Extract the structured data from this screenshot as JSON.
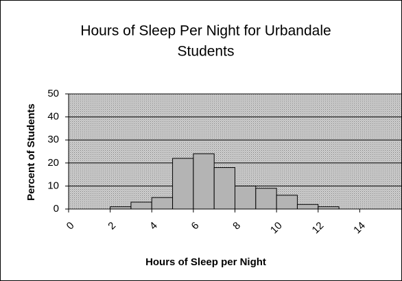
{
  "chart_data": {
    "type": "histogram",
    "title": [
      "Hours of Sleep Per Night for Urbandale",
      "Students"
    ],
    "x_label": "Hours of Sleep per Night",
    "y_label": "Percent of Students",
    "bins": [
      2,
      3,
      4,
      5,
      6,
      7,
      8,
      9,
      10,
      11,
      12,
      13
    ],
    "counts": [
      1,
      3,
      5,
      22,
      24,
      18,
      10,
      9,
      6,
      2,
      1
    ],
    "color": "#b4b4b4",
    "xlim": [
      0,
      16
    ],
    "xticks": [
      0,
      2,
      4,
      6,
      8,
      10,
      12,
      14
    ],
    "ylim": [
      0,
      50
    ],
    "yticks": [
      0,
      10,
      20,
      30,
      40,
      50
    ],
    "grid": true
  }
}
